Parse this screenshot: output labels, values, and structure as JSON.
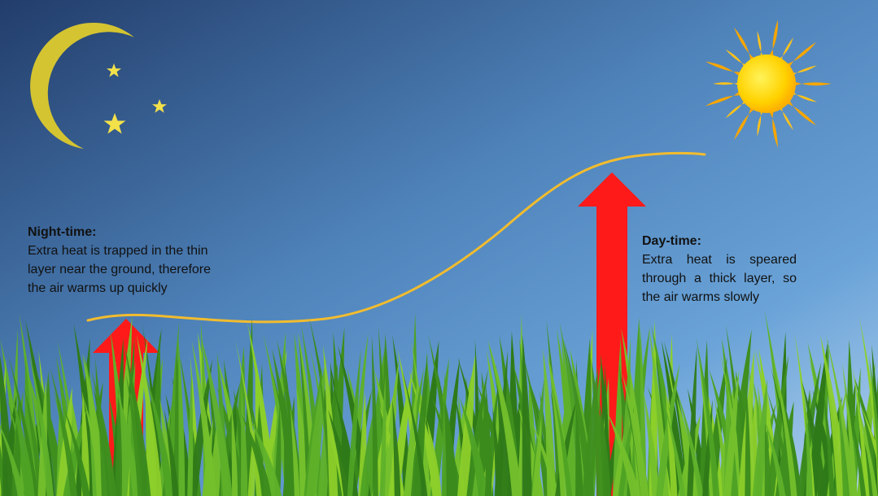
{
  "night": {
    "heading": "Night-time:",
    "text": "Extra heat is trapped in the thin layer near the ground, therefore the air warms up quickly"
  },
  "day": {
    "heading": "Day-time:",
    "text": "Extra heat is speared through a thick layer, so the air warms slowly"
  },
  "colors": {
    "sky_top": "#24406e",
    "sky_bottom": "#a9cbea",
    "moon": "#d4c431",
    "star": "#f3e14a",
    "sun_core": "#ffd400",
    "sun_rays": "#f7a600",
    "arrow": "#ff1a1a",
    "boundary_curve": "#f2bc2e",
    "grass_dark": "#2f7a18",
    "grass_light": "#8ccf2a"
  }
}
